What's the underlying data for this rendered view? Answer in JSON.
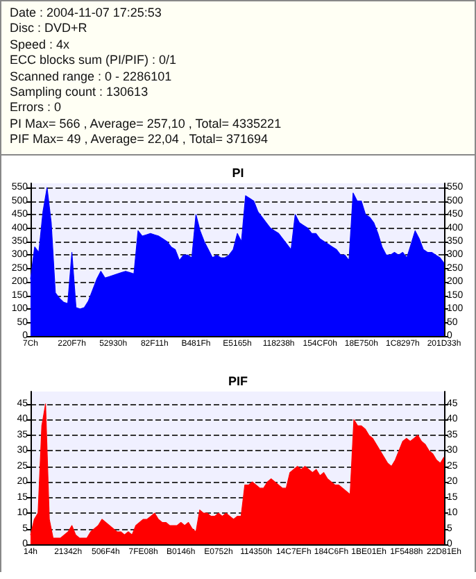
{
  "chart_data": [
    {
      "type": "other",
      "annotations": [
        "Date : 2004-11-07 17:25:53",
        "Disc : DVD+R",
        "Speed : 4x",
        "ECC blocks sum (PI/PIF) : 0/1",
        "Scanned range : 0 - 2286101",
        "Sampling count : 130613",
        "Errors : 0",
        "PI Max= 566 , Average= 257,10 , Total= 4335221",
        "PIF Max= 49 , Average= 22,04 , Total= 371694"
      ]
    },
    {
      "type": "area",
      "title": "PI",
      "color": "#0000ff",
      "grid": "y",
      "categories": [
        "7Ch",
        null,
        null,
        null,
        null,
        null,
        null,
        null,
        null,
        null,
        "220F7h",
        null,
        null,
        null,
        null,
        null,
        null,
        null,
        null,
        null,
        "52930h",
        null,
        null,
        null,
        null,
        null,
        null,
        null,
        null,
        null,
        "82F11h",
        null,
        null,
        null,
        null,
        null,
        null,
        null,
        null,
        null,
        "B481Fh",
        null,
        null,
        null,
        null,
        null,
        null,
        null,
        null,
        null,
        "E5165h",
        null,
        null,
        null,
        null,
        null,
        null,
        null,
        null,
        null,
        "118238h",
        null,
        null,
        null,
        null,
        null,
        null,
        null,
        null,
        null,
        "154CF0h",
        null,
        null,
        null,
        null,
        null,
        null,
        null,
        null,
        null,
        "18E750h",
        null,
        null,
        null,
        null,
        null,
        null,
        null,
        null,
        null,
        "1C8297h",
        null,
        null,
        null,
        null,
        null,
        null,
        null,
        null,
        null,
        "201D33h"
      ],
      "values": [
        210,
        330,
        310,
        460,
        550,
        420,
        160,
        140,
        125,
        120,
        310,
        105,
        100,
        105,
        130,
        170,
        210,
        240,
        215,
        220,
        225,
        230,
        235,
        240,
        235,
        230,
        390,
        370,
        375,
        380,
        375,
        370,
        360,
        350,
        330,
        320,
        280,
        300,
        300,
        290,
        450,
        390,
        350,
        320,
        290,
        300,
        290,
        290,
        300,
        320,
        380,
        350,
        520,
        510,
        500,
        460,
        440,
        420,
        400,
        390,
        380,
        360,
        340,
        320,
        450,
        420,
        410,
        400,
        380,
        380,
        360,
        350,
        340,
        330,
        320,
        300,
        300,
        280,
        530,
        500,
        500,
        450,
        440,
        420,
        380,
        330,
        300,
        300,
        310,
        300,
        310,
        290,
        340,
        390,
        360,
        320,
        310,
        310,
        300,
        290,
        270
      ],
      "ylim": [
        0,
        566
      ],
      "yticks": [
        0,
        50,
        100,
        150,
        200,
        250,
        300,
        350,
        400,
        450,
        500,
        550
      ],
      "y2lim": [
        0,
        566
      ],
      "y2ticks": [
        0,
        50,
        100,
        150,
        200,
        250,
        300,
        350,
        400,
        450,
        500,
        550
      ]
    },
    {
      "type": "area",
      "title": "PIF",
      "color": "#ff0000",
      "grid": "y",
      "categories": [
        "14h",
        null,
        null,
        null,
        null,
        null,
        null,
        null,
        null,
        null,
        "21342h",
        null,
        null,
        null,
        null,
        null,
        null,
        null,
        null,
        null,
        "506F4h",
        null,
        null,
        null,
        null,
        null,
        null,
        null,
        null,
        null,
        "7FE08h",
        null,
        null,
        null,
        null,
        null,
        null,
        null,
        null,
        null,
        "B0146h",
        null,
        null,
        null,
        null,
        null,
        null,
        null,
        null,
        null,
        "E0752h",
        null,
        null,
        null,
        null,
        null,
        null,
        null,
        null,
        null,
        "114350h",
        null,
        null,
        null,
        null,
        null,
        null,
        null,
        null,
        null,
        "14C7EFh",
        null,
        null,
        null,
        null,
        null,
        null,
        null,
        null,
        null,
        "184C6Fh",
        null,
        null,
        null,
        null,
        null,
        null,
        null,
        null,
        null,
        "1BE01Eh",
        null,
        null,
        null,
        null,
        null,
        null,
        null,
        null,
        null,
        "1F5488h",
        null,
        null,
        null,
        null,
        null,
        null,
        null,
        null,
        null,
        "22D81Eh"
      ],
      "values": [
        3,
        8,
        10,
        38,
        45,
        8,
        2,
        2,
        2,
        3,
        4,
        6,
        3,
        2,
        2,
        2,
        4,
        5,
        6,
        8,
        7,
        6,
        5,
        4,
        4,
        3,
        4,
        3,
        6,
        7,
        8,
        8,
        9,
        10,
        8,
        7,
        7,
        6,
        6,
        6,
        7,
        6,
        7,
        5,
        4,
        11,
        10,
        10,
        9,
        9,
        10,
        9,
        10,
        9,
        8,
        9,
        9,
        19,
        19,
        20,
        19,
        18,
        18,
        20,
        21,
        20,
        19,
        18,
        18,
        23,
        24,
        25,
        24,
        25,
        24,
        23,
        24,
        22,
        23,
        21,
        20,
        19,
        19,
        18,
        17,
        16,
        40,
        38,
        38,
        37,
        35,
        34,
        32,
        30,
        28,
        26,
        25,
        27,
        30,
        33,
        34,
        33,
        34,
        35,
        33,
        32,
        30,
        29,
        27,
        26,
        28
      ],
      "ylim": [
        0,
        49
      ],
      "yticks": [
        0,
        5,
        10,
        15,
        20,
        25,
        30,
        35,
        40,
        45
      ],
      "y2lim": [
        0,
        49
      ],
      "y2ticks": [
        0,
        5,
        10,
        15,
        20,
        25,
        30,
        35,
        40,
        45
      ]
    }
  ]
}
